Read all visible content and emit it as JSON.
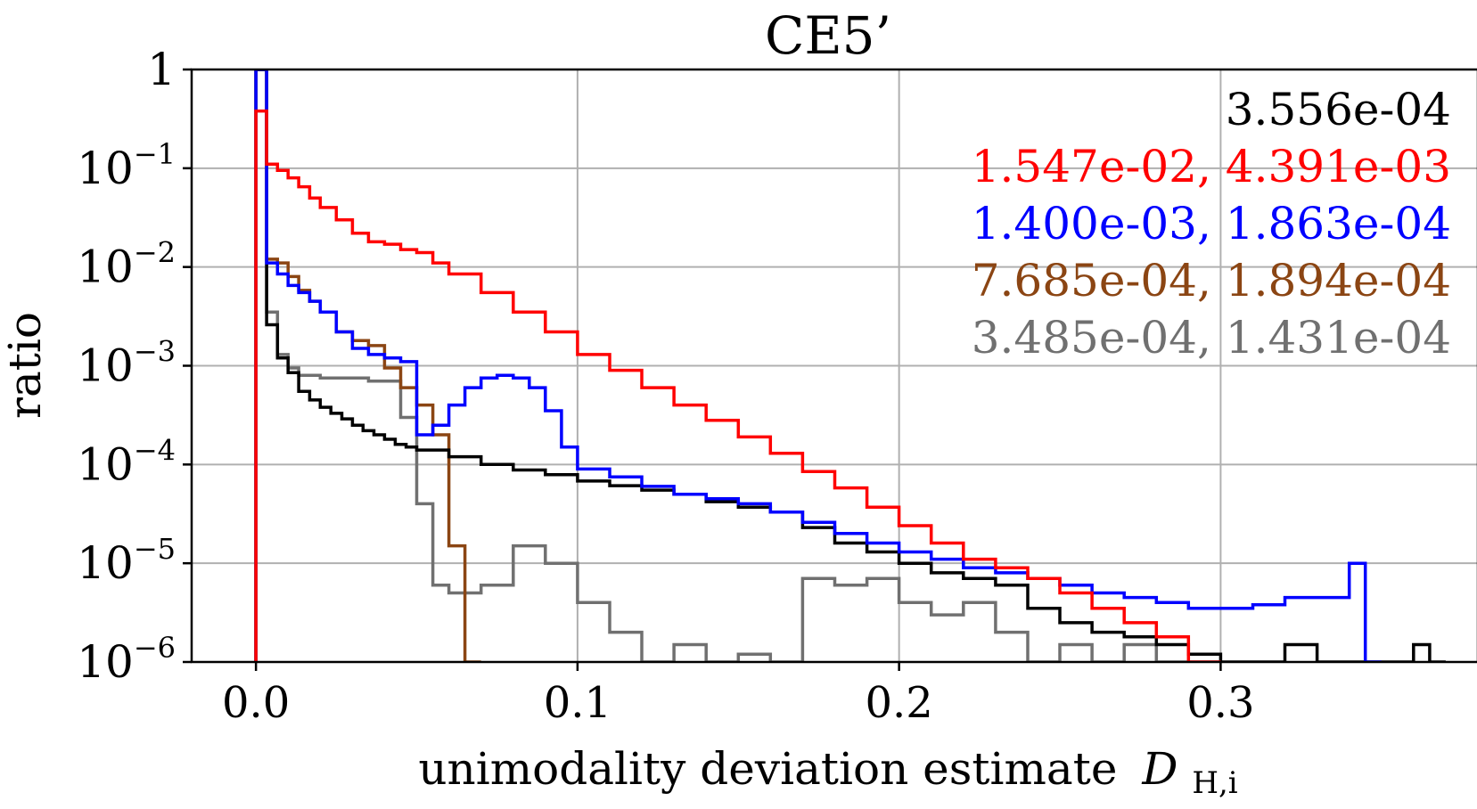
{
  "chart_data": {
    "type": "histogram-step",
    "title": "CE5’",
    "xlabel": "unimodality deviation estimate",
    "xlabel_math": "D",
    "xlabel_sub": "H,i",
    "ylabel": "ratio",
    "yscale": "log",
    "xlim": [
      -0.02,
      0.38
    ],
    "ylim": [
      1e-06,
      1
    ],
    "grid": true,
    "x_ticks": [
      {
        "value": 0.0,
        "label": "0.0"
      },
      {
        "value": 0.1,
        "label": "0.1"
      },
      {
        "value": 0.2,
        "label": "0.2"
      },
      {
        "value": 0.3,
        "label": "0.3"
      }
    ],
    "y_ticks": [
      {
        "exp": 0,
        "base": "1",
        "sup": ""
      },
      {
        "exp": -1,
        "base": "10",
        "sup": "−1"
      },
      {
        "exp": -2,
        "base": "10",
        "sup": "−2"
      },
      {
        "exp": -3,
        "base": "10",
        "sup": "−3"
      },
      {
        "exp": -4,
        "base": "10",
        "sup": "−4"
      },
      {
        "exp": -5,
        "base": "10",
        "sup": "−5"
      },
      {
        "exp": -6,
        "base": "10",
        "sup": "−6"
      }
    ],
    "legend_placement": "top-right",
    "legend": [
      {
        "text": "3.556e-04",
        "color": "#000000"
      },
      {
        "text": "1.547e-02, 4.391e-03",
        "color": "#ff0000"
      },
      {
        "text": "1.400e-03, 1.863e-04",
        "color": "#0000ff"
      },
      {
        "text": "7.685e-04, 1.894e-04",
        "color": "#8b4513"
      },
      {
        "text": "3.485e-04, 1.431e-04",
        "color": "#707070"
      }
    ],
    "series": [
      {
        "name": "black",
        "color": "#000000",
        "x": [
          0.0,
          0.0033,
          0.0067,
          0.01,
          0.0133,
          0.0167,
          0.02,
          0.0233,
          0.0267,
          0.03,
          0.0333,
          0.0367,
          0.04,
          0.0433,
          0.0467,
          0.05,
          0.06,
          0.07,
          0.08,
          0.09,
          0.1,
          0.11,
          0.12,
          0.13,
          0.14,
          0.15,
          0.16,
          0.17,
          0.18,
          0.19,
          0.2,
          0.21,
          0.22,
          0.23,
          0.24,
          0.25,
          0.26,
          0.27,
          0.28,
          0.29,
          0.3,
          0.31,
          0.32,
          0.33,
          0.34,
          0.35,
          0.36,
          0.365
        ],
        "values": [
          1.0,
          0.0026,
          0.0012,
          0.00085,
          0.00055,
          0.00045,
          0.00038,
          0.00033,
          0.00029,
          0.00025,
          0.00022,
          0.0002,
          0.00018,
          0.00016,
          0.00015,
          0.00014,
          0.00012,
          0.0001,
          8.8e-05,
          7.9e-05,
          6.8e-05,
          6.1e-05,
          5.5e-05,
          5e-05,
          4.2e-05,
          3.7e-05,
          3.3e-05,
          2.3e-05,
          1.6e-05,
          1.3e-05,
          1e-05,
          8e-06,
          7e-06,
          6e-06,
          3.5e-06,
          2.5e-06,
          2e-06,
          1.8e-06,
          1.5e-06,
          1.2e-06,
          1e-06,
          1e-06,
          1.5e-06,
          1e-06,
          1e-06,
          1e-06,
          1.5e-06,
          1e-06
        ]
      },
      {
        "name": "red",
        "color": "#ff0000",
        "x": [
          0.0,
          0.0033,
          0.0067,
          0.01,
          0.0133,
          0.0167,
          0.02,
          0.025,
          0.03,
          0.035,
          0.04,
          0.045,
          0.05,
          0.055,
          0.06,
          0.07,
          0.08,
          0.09,
          0.1,
          0.11,
          0.12,
          0.13,
          0.14,
          0.15,
          0.16,
          0.17,
          0.18,
          0.19,
          0.2,
          0.21,
          0.22,
          0.23,
          0.24,
          0.25,
          0.26,
          0.27,
          0.28,
          0.29
        ],
        "values": [
          0.38,
          0.11,
          0.095,
          0.08,
          0.065,
          0.05,
          0.04,
          0.03,
          0.022,
          0.018,
          0.017,
          0.015,
          0.014,
          0.011,
          0.0085,
          0.0055,
          0.0035,
          0.0022,
          0.0013,
          0.0009,
          0.0006,
          0.0004,
          0.00028,
          0.00019,
          0.00013,
          8.5e-05,
          5.8e-05,
          3.7e-05,
          2.4e-05,
          1.6e-05,
          1.1e-05,
          9e-06,
          7e-06,
          5e-06,
          3.5e-06,
          2.5e-06,
          1.8e-06,
          1e-06
        ]
      },
      {
        "name": "blue",
        "color": "#0000ff",
        "x": [
          0.0,
          0.0033,
          0.0067,
          0.01,
          0.0133,
          0.0167,
          0.02,
          0.025,
          0.03,
          0.035,
          0.04,
          0.045,
          0.05,
          0.055,
          0.06,
          0.065,
          0.07,
          0.075,
          0.08,
          0.085,
          0.09,
          0.095,
          0.1,
          0.11,
          0.12,
          0.13,
          0.14,
          0.15,
          0.16,
          0.17,
          0.18,
          0.19,
          0.2,
          0.21,
          0.22,
          0.23,
          0.24,
          0.25,
          0.26,
          0.27,
          0.28,
          0.29,
          0.3,
          0.31,
          0.32,
          0.33,
          0.34,
          0.345
        ],
        "values": [
          1.0,
          0.011,
          0.0085,
          0.0065,
          0.0055,
          0.0045,
          0.0035,
          0.0022,
          0.0015,
          0.0013,
          0.0012,
          0.0011,
          0.0002,
          0.00025,
          0.0004,
          0.0006,
          0.00075,
          0.0008,
          0.00075,
          0.0006,
          0.00035,
          0.00015,
          9e-05,
          7.5e-05,
          6e-05,
          5e-05,
          4.5e-05,
          4e-05,
          3.3e-05,
          2.6e-05,
          2e-05,
          1.6e-05,
          1.3e-05,
          1.1e-05,
          9e-06,
          8e-06,
          7e-06,
          6e-06,
          5e-06,
          4.5e-06,
          4e-06,
          3.5e-06,
          3.5e-06,
          3.8e-06,
          4.5e-06,
          4.5e-06,
          1e-05,
          1e-06
        ]
      },
      {
        "name": "brown",
        "color": "#8b4513",
        "x": [
          0.0,
          0.0033,
          0.0067,
          0.01,
          0.0133,
          0.0167,
          0.02,
          0.025,
          0.03,
          0.035,
          0.04,
          0.045,
          0.05,
          0.055,
          0.06,
          0.065
        ],
        "values": [
          1.0,
          0.012,
          0.011,
          0.008,
          0.0058,
          0.0045,
          0.0035,
          0.0022,
          0.0018,
          0.0016,
          0.00095,
          0.0006,
          0.0004,
          0.0002,
          1.5e-05,
          1e-06
        ]
      },
      {
        "name": "gray",
        "color": "#707070",
        "x": [
          0.0,
          0.0033,
          0.0067,
          0.01,
          0.0133,
          0.0167,
          0.02,
          0.025,
          0.03,
          0.035,
          0.04,
          0.045,
          0.05,
          0.055,
          0.06,
          0.07,
          0.08,
          0.09,
          0.1,
          0.11,
          0.12,
          0.13,
          0.14,
          0.15,
          0.16,
          0.17,
          0.18,
          0.19,
          0.2,
          0.21,
          0.22,
          0.23,
          0.24,
          0.25,
          0.26,
          0.27,
          0.28,
          0.29
        ],
        "values": [
          1.0,
          0.0035,
          0.0013,
          0.00095,
          0.0008,
          0.0008,
          0.00075,
          0.00075,
          0.00075,
          0.0007,
          0.0007,
          0.0003,
          4e-05,
          6e-06,
          5e-06,
          6e-06,
          1.5e-05,
          1e-05,
          4e-06,
          2e-06,
          1e-06,
          1.5e-06,
          1e-06,
          1.2e-06,
          1e-06,
          7e-06,
          6e-06,
          7e-06,
          4e-06,
          3e-06,
          4e-06,
          2e-06,
          1e-06,
          1.5e-06,
          1e-06,
          1.5e-06,
          1e-06,
          1e-06
        ]
      }
    ]
  }
}
